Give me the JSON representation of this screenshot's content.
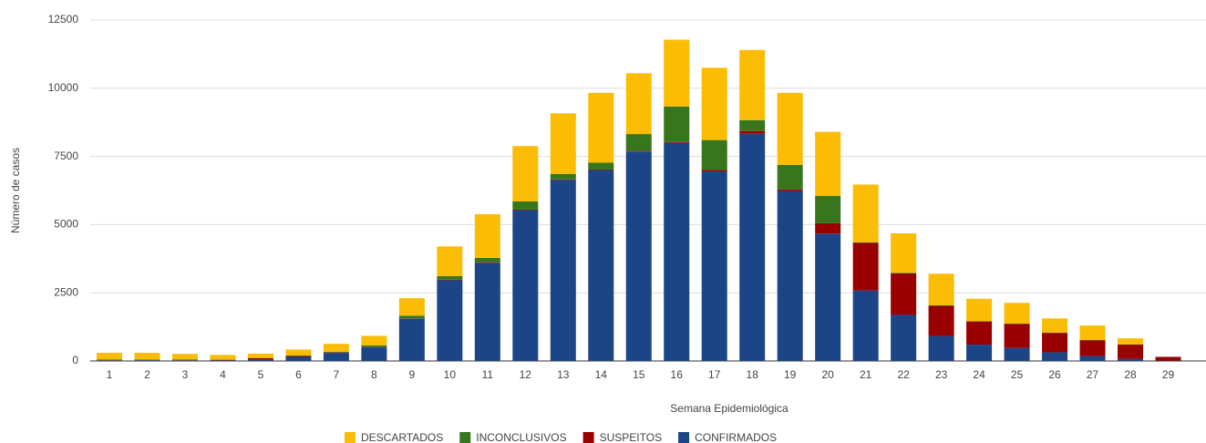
{
  "chart_data": {
    "type": "stacked_bar",
    "x_label": "Semana Epidemiológica",
    "y_label": "Número de casos",
    "categories": [
      "1",
      "2",
      "3",
      "4",
      "5",
      "6",
      "7",
      "8",
      "9",
      "10",
      "11",
      "12",
      "13",
      "14",
      "15",
      "16",
      "17",
      "18",
      "19",
      "20",
      "21",
      "22",
      "23",
      "24",
      "25",
      "26",
      "27",
      "28",
      "29"
    ],
    "series": [
      {
        "name": "CONFIRMADOS",
        "color": "#1c4587",
        "values": [
          20,
          30,
          20,
          20,
          40,
          150,
          290,
          500,
          1550,
          2960,
          3600,
          5530,
          6640,
          7000,
          7680,
          8000,
          6950,
          8330,
          6230,
          4670,
          2580,
          1690,
          920,
          600,
          480,
          320,
          180,
          80,
          10
        ]
      },
      {
        "name": "SUSPEITOS",
        "color": "#990000",
        "values": [
          10,
          10,
          10,
          20,
          60,
          30,
          20,
          10,
          10,
          20,
          20,
          20,
          20,
          20,
          20,
          30,
          50,
          100,
          60,
          380,
          1750,
          1520,
          1100,
          850,
          880,
          710,
          580,
          520,
          140
        ]
      },
      {
        "name": "INCONCLUSIVOS",
        "color": "#38761d",
        "values": [
          20,
          20,
          20,
          10,
          10,
          20,
          30,
          60,
          100,
          130,
          160,
          300,
          200,
          250,
          620,
          1300,
          1100,
          400,
          900,
          1000,
          20,
          20,
          20,
          10,
          10,
          10,
          10,
          10,
          0
        ]
      },
      {
        "name": "DESCARTADOS",
        "color": "#fbbc04",
        "values": [
          250,
          240,
          210,
          170,
          160,
          220,
          290,
          350,
          640,
          1090,
          1600,
          2030,
          2220,
          2560,
          2230,
          2450,
          2650,
          2570,
          2640,
          2350,
          2120,
          1450,
          1160,
          820,
          760,
          520,
          530,
          220,
          0
        ]
      }
    ],
    "ylim": [
      0,
      12500
    ],
    "yticks": [
      0,
      2500,
      5000,
      7500,
      10000,
      12500
    ],
    "grid": true,
    "legend": "bottom"
  }
}
